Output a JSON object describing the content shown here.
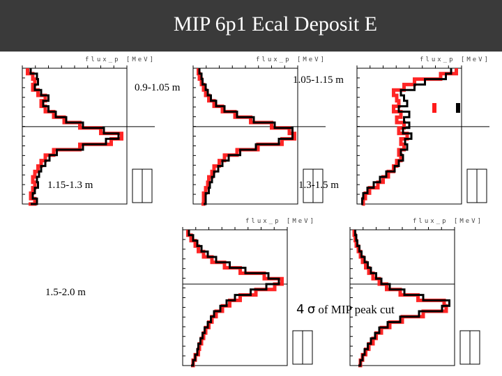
{
  "header": {
    "title": "MIP 6p1 Ecal Deposit E"
  },
  "labels": {
    "r1": "0.9-1.05 m",
    "r2": "1.05-1.15 m",
    "r3": "1.15-1.3 m",
    "r4": "1.3-1.5 m",
    "r5": "1.5-2.0 m",
    "cut_number": "4",
    "cut_sigma": "σ",
    "cut_text": "of MIP peak cut"
  },
  "colors": {
    "header_bg": "#3a3a3a",
    "red": "#ff1a1a",
    "black": "#000000"
  },
  "panel_text": {
    "axis_title": "flux_p [MeV]"
  },
  "chart_data": [
    {
      "type": "line",
      "panel": "top-left",
      "xlabel": "flux_p [MeV]",
      "x": [
        0.0,
        0.04,
        0.08,
        0.12,
        0.16,
        0.2,
        0.24,
        0.28,
        0.32,
        0.36,
        0.4,
        0.44,
        0.48,
        0.52,
        0.56,
        0.6,
        0.64,
        0.68,
        0.72,
        0.76,
        0.8,
        0.84,
        0.88,
        0.92,
        0.96,
        1.0
      ],
      "series": [
        {
          "color": "#ff1a1a",
          "values": [
            0.05,
            0.1,
            0.12,
            0.1,
            0.15,
            0.22,
            0.18,
            0.22,
            0.3,
            0.4,
            0.55,
            0.75,
            0.95,
            0.85,
            0.55,
            0.3,
            0.22,
            0.18,
            0.15,
            0.12,
            0.1,
            0.12,
            0.1,
            0.08,
            0.12,
            0.06
          ]
        },
        {
          "color": "#000000",
          "values": [
            0.08,
            0.14,
            0.15,
            0.12,
            0.18,
            0.25,
            0.2,
            0.25,
            0.32,
            0.42,
            0.58,
            0.78,
            0.92,
            0.8,
            0.58,
            0.33,
            0.26,
            0.22,
            0.18,
            0.16,
            0.14,
            0.15,
            0.12,
            0.1,
            0.14,
            0.08
          ]
        }
      ]
    },
    {
      "type": "line",
      "panel": "top-middle",
      "xlabel": "flux_p [MeV]",
      "x": [
        0.0,
        0.04,
        0.08,
        0.12,
        0.16,
        0.2,
        0.24,
        0.28,
        0.32,
        0.36,
        0.4,
        0.44,
        0.48,
        0.52,
        0.56,
        0.6,
        0.64,
        0.68,
        0.72,
        0.76,
        0.8,
        0.84,
        0.88,
        0.92,
        0.96,
        1.0
      ],
      "series": [
        {
          "color": "#ff1a1a",
          "values": [
            0.05,
            0.06,
            0.08,
            0.1,
            0.12,
            0.15,
            0.2,
            0.28,
            0.4,
            0.55,
            0.75,
            0.92,
            0.97,
            0.85,
            0.62,
            0.42,
            0.3,
            0.25,
            0.2,
            0.18,
            0.15,
            0.14,
            0.12,
            0.1,
            0.1,
            0.08
          ]
        },
        {
          "color": "#000000",
          "values": [
            0.06,
            0.08,
            0.09,
            0.12,
            0.14,
            0.17,
            0.22,
            0.3,
            0.42,
            0.58,
            0.78,
            0.95,
            0.95,
            0.82,
            0.6,
            0.45,
            0.34,
            0.28,
            0.24,
            0.2,
            0.18,
            0.16,
            0.15,
            0.12,
            0.12,
            0.1
          ]
        }
      ]
    },
    {
      "type": "line",
      "panel": "top-right",
      "xlabel": "flux_p [MeV]",
      "x": [
        0.0,
        0.04,
        0.08,
        0.12,
        0.16,
        0.2,
        0.24,
        0.28,
        0.32,
        0.36,
        0.4,
        0.44,
        0.48,
        0.52,
        0.56,
        0.6,
        0.64,
        0.68,
        0.72,
        0.76,
        0.8,
        0.84,
        0.88,
        0.92,
        0.96,
        1.0
      ],
      "series": [
        {
          "color": "#ff1a1a",
          "values": [
            0.95,
            0.8,
            0.55,
            0.45,
            0.35,
            0.38,
            0.4,
            0.35,
            0.42,
            0.38,
            0.45,
            0.4,
            0.48,
            0.42,
            0.45,
            0.4,
            0.42,
            0.38,
            0.35,
            0.3,
            0.25,
            0.2,
            0.12,
            0.08,
            0.06,
            0.05
          ]
        },
        {
          "color": "#000000",
          "values": [
            0.9,
            0.85,
            0.65,
            0.55,
            0.42,
            0.45,
            0.48,
            0.4,
            0.5,
            0.45,
            0.5,
            0.44,
            0.52,
            0.46,
            0.48,
            0.42,
            0.44,
            0.4,
            0.36,
            0.28,
            0.22,
            0.16,
            0.1,
            0.06,
            0.05,
            0.04
          ]
        }
      ]
    },
    {
      "type": "line",
      "panel": "bottom-middle",
      "xlabel": "flux_p [MeV]",
      "x": [
        0.0,
        0.04,
        0.08,
        0.12,
        0.16,
        0.2,
        0.24,
        0.28,
        0.32,
        0.36,
        0.4,
        0.44,
        0.48,
        0.52,
        0.56,
        0.6,
        0.64,
        0.68,
        0.72,
        0.76,
        0.8,
        0.84,
        0.88,
        0.92,
        0.96,
        1.0
      ],
      "series": [
        {
          "color": "#ff1a1a",
          "values": [
            0.05,
            0.08,
            0.12,
            0.15,
            0.2,
            0.28,
            0.4,
            0.55,
            0.78,
            0.95,
            0.88,
            0.7,
            0.55,
            0.45,
            0.38,
            0.32,
            0.28,
            0.25,
            0.22,
            0.2,
            0.18,
            0.16,
            0.15,
            0.12,
            0.1,
            0.08
          ]
        },
        {
          "color": "#000000",
          "values": [
            0.06,
            0.1,
            0.14,
            0.18,
            0.24,
            0.32,
            0.45,
            0.6,
            0.82,
            0.92,
            0.8,
            0.65,
            0.5,
            0.42,
            0.36,
            0.3,
            0.27,
            0.24,
            0.21,
            0.19,
            0.17,
            0.15,
            0.14,
            0.12,
            0.1,
            0.08
          ]
        }
      ]
    },
    {
      "type": "line",
      "panel": "bottom-right",
      "xlabel": "flux_p [MeV]",
      "x": [
        0.0,
        0.04,
        0.08,
        0.12,
        0.16,
        0.2,
        0.24,
        0.28,
        0.32,
        0.36,
        0.4,
        0.44,
        0.48,
        0.52,
        0.56,
        0.6,
        0.64,
        0.68,
        0.72,
        0.76,
        0.8,
        0.84,
        0.88,
        0.92,
        0.96,
        1.0
      ],
      "series": [
        {
          "color": "#ff1a1a",
          "values": [
            0.04,
            0.05,
            0.06,
            0.08,
            0.1,
            0.12,
            0.15,
            0.18,
            0.22,
            0.28,
            0.35,
            0.48,
            0.65,
            0.9,
            0.92,
            0.7,
            0.5,
            0.38,
            0.3,
            0.25,
            0.22,
            0.18,
            0.15,
            0.12,
            0.1,
            0.08
          ]
        },
        {
          "color": "#000000",
          "values": [
            0.05,
            0.06,
            0.07,
            0.09,
            0.11,
            0.14,
            0.17,
            0.2,
            0.25,
            0.3,
            0.38,
            0.52,
            0.7,
            0.95,
            0.88,
            0.66,
            0.48,
            0.36,
            0.28,
            0.24,
            0.2,
            0.17,
            0.14,
            0.12,
            0.1,
            0.08
          ]
        }
      ]
    }
  ]
}
